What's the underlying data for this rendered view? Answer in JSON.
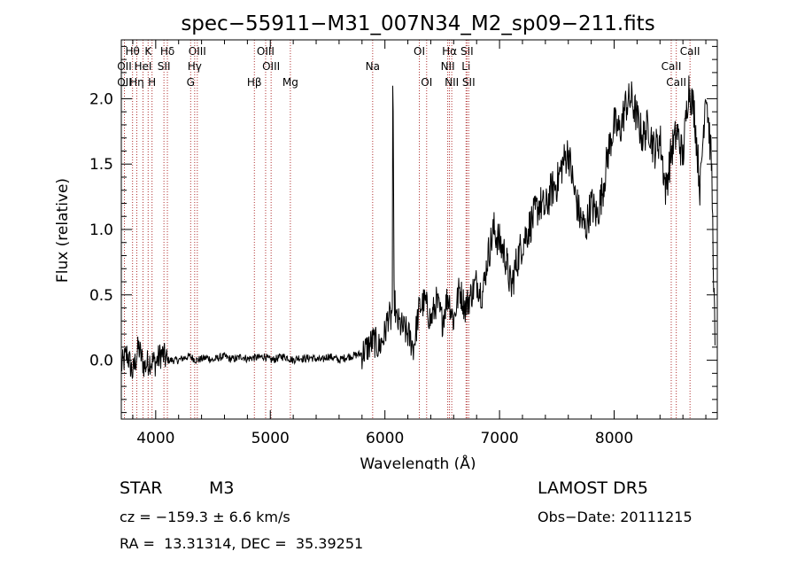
{
  "chart_data": {
    "type": "line",
    "title": "spec−55911−M31_007N34_M2_sp09−211.fits",
    "xlabel": "Wavelength (Å)",
    "ylabel": "Flux (relative)",
    "xlim": [
      3700,
      8900
    ],
    "ylim": [
      -0.45,
      2.45
    ],
    "xticks": [
      4000,
      5000,
      6000,
      7000,
      8000
    ],
    "yticks": [
      0.0,
      0.5,
      1.0,
      1.5,
      2.0
    ],
    "xtick_labels": [
      "4000",
      "5000",
      "6000",
      "7000",
      "8000"
    ],
    "ytick_labels": [
      "0.0",
      "0.5",
      "1.0",
      "1.5",
      "2.0"
    ],
    "grid": false,
    "series": [
      {
        "x": [
          3700,
          3750,
          3800,
          3850,
          3900,
          3950,
          4000,
          4050,
          4100,
          4150,
          4200,
          4250,
          4300,
          4350,
          4400,
          4450,
          4500,
          4550,
          4600,
          4650,
          4700,
          4750,
          4800,
          4850,
          4900,
          4950,
          5000,
          5050,
          5100,
          5150,
          5200,
          5250,
          5300,
          5350,
          5400,
          5450,
          5500,
          5550,
          5600,
          5650,
          5700,
          5750,
          5800,
          5850,
          5900,
          5950,
          6000,
          6030,
          6050,
          6065,
          6070,
          6080,
          6100,
          6150,
          6200,
          6250,
          6300,
          6350,
          6400,
          6450,
          6500,
          6550,
          6600,
          6650,
          6700,
          6750,
          6800,
          6850,
          6900,
          6950,
          7000,
          7050,
          7100,
          7150,
          7200,
          7250,
          7300,
          7350,
          7400,
          7450,
          7500,
          7550,
          7600,
          7650,
          7700,
          7750,
          7800,
          7850,
          7900,
          7950,
          8000,
          8050,
          8100,
          8150,
          8200,
          8250,
          8300,
          8350,
          8400,
          8450,
          8500,
          8550,
          8600,
          8650,
          8700,
          8750,
          8800,
          8850,
          8880
        ],
        "y": [
          -0.05,
          0.05,
          -0.1,
          0.1,
          -0.05,
          0.0,
          -0.02,
          0.05,
          0.0,
          0.0,
          0.0,
          0.02,
          0.03,
          0.0,
          0.01,
          0.02,
          0.0,
          0.02,
          0.03,
          0.01,
          0.01,
          0.03,
          0.01,
          0.02,
          0.02,
          0.03,
          0.0,
          0.01,
          0.03,
          0.02,
          0.0,
          0.02,
          0.01,
          0.02,
          0.01,
          0.0,
          0.03,
          0.02,
          0.0,
          0.02,
          0.03,
          0.04,
          0.05,
          0.1,
          0.15,
          0.1,
          0.2,
          0.35,
          0.3,
          0.4,
          2.1,
          0.5,
          0.3,
          0.25,
          0.2,
          0.1,
          0.4,
          0.45,
          0.3,
          0.45,
          0.3,
          0.5,
          0.3,
          0.55,
          0.4,
          0.5,
          0.6,
          0.5,
          0.8,
          1.0,
          0.9,
          0.8,
          0.55,
          0.75,
          0.9,
          1.0,
          1.1,
          1.2,
          1.15,
          1.3,
          1.35,
          1.5,
          1.6,
          1.3,
          1.1,
          1.0,
          1.2,
          1.1,
          1.3,
          1.6,
          1.8,
          1.75,
          1.95,
          2.0,
          1.85,
          1.7,
          1.8,
          1.6,
          1.7,
          1.3,
          1.6,
          1.75,
          1.55,
          2.1,
          1.9,
          1.3,
          2.1,
          1.5,
          0.1
        ]
      }
    ],
    "line_markers": [
      {
        "label": "Hθ",
        "wavelength": 3798,
        "row": 1
      },
      {
        "label": "K",
        "wavelength": 3934,
        "row": 1
      },
      {
        "label": "Hδ",
        "wavelength": 4102,
        "row": 1
      },
      {
        "label": "OIII",
        "wavelength": 4363,
        "row": 1
      },
      {
        "label": "OIII",
        "wavelength": 4959,
        "row": 1
      },
      {
        "label": "OI",
        "wavelength": 6300,
        "row": 1
      },
      {
        "label": "Hα",
        "wavelength": 6563,
        "row": 1
      },
      {
        "label": "SII",
        "wavelength": 6716,
        "row": 1
      },
      {
        "label": "CaII",
        "wavelength": 8662,
        "row": 1
      },
      {
        "label": "OII",
        "wavelength": 3727,
        "row": 2
      },
      {
        "label": "HeI",
        "wavelength": 3889,
        "row": 2
      },
      {
        "label": "SII",
        "wavelength": 4072,
        "row": 2
      },
      {
        "label": "Hγ",
        "wavelength": 4340,
        "row": 2
      },
      {
        "label": "OIII",
        "wavelength": 5007,
        "row": 2
      },
      {
        "label": "Na",
        "wavelength": 5893,
        "row": 2
      },
      {
        "label": "NII",
        "wavelength": 6548,
        "row": 2
      },
      {
        "label": "Li",
        "wavelength": 6708,
        "row": 2
      },
      {
        "label": "CaII",
        "wavelength": 8498,
        "row": 2
      },
      {
        "label": "OII",
        "wavelength": 3727,
        "row": 3
      },
      {
        "label": "Hη",
        "wavelength": 3835,
        "row": 3
      },
      {
        "label": "H",
        "wavelength": 3968,
        "row": 3
      },
      {
        "label": "G",
        "wavelength": 4305,
        "row": 3
      },
      {
        "label": "Hβ",
        "wavelength": 4861,
        "row": 3
      },
      {
        "label": "Mg",
        "wavelength": 5175,
        "row": 3
      },
      {
        "label": "OI",
        "wavelength": 6364,
        "row": 3
      },
      {
        "label": "NII",
        "wavelength": 6583,
        "row": 3
      },
      {
        "label": "SII",
        "wavelength": 6731,
        "row": 3
      },
      {
        "label": "CaII",
        "wavelength": 8542,
        "row": 3
      }
    ],
    "line_color": "#000000",
    "marker_line_color": "#b03030"
  },
  "info": {
    "object_class": "STAR",
    "subclass": "M3",
    "survey": "LAMOST DR5",
    "redshift_text": "cz = −159.3 ± 6.6 km/s",
    "obs_date": "Obs−Date: 20111215",
    "coords": "RA =  13.31314, DEC =  35.39251"
  }
}
